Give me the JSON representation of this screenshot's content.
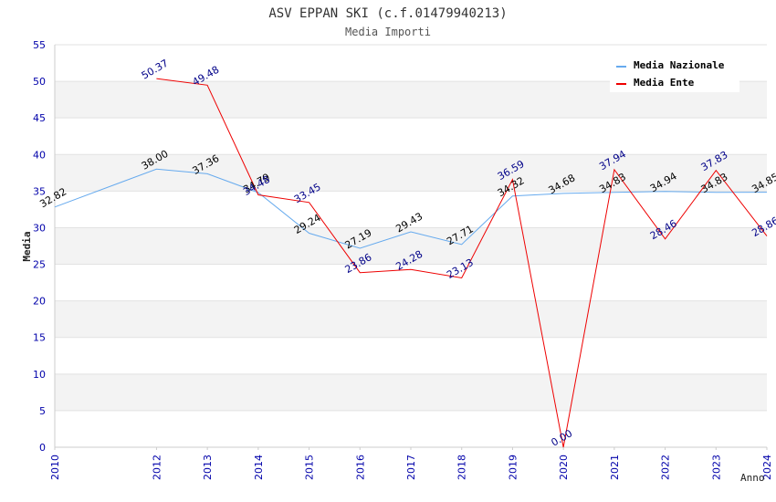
{
  "chart_data": {
    "type": "line",
    "title": "ASV EPPAN SKI (c.f.01479940213)",
    "subtitle": "Media Importi",
    "xlabel": "Anno",
    "ylabel": "Media",
    "ylim": [
      0,
      55
    ],
    "yticks": [
      "0",
      "5",
      "10",
      "15",
      "20",
      "25",
      "30",
      "35",
      "40",
      "45",
      "50",
      "55"
    ],
    "x": [
      "2010",
      "2011",
      "2012",
      "2013",
      "2014",
      "2015",
      "2016",
      "2017",
      "2018",
      "2019",
      "2020",
      "2021",
      "2022",
      "2023",
      "2024"
    ],
    "xticks": [
      "2010",
      "2012",
      "2013",
      "2014",
      "2015",
      "2016",
      "2017",
      "2018",
      "2019",
      "2020",
      "2021",
      "2022",
      "2023",
      "2024"
    ],
    "series": [
      {
        "name": "Media Nazionale",
        "color": "#66aaee",
        "label_color": "#000000",
        "values": [
          32.82,
          null,
          38.0,
          37.36,
          34.79,
          29.24,
          27.19,
          29.43,
          27.71,
          34.32,
          34.68,
          34.83,
          34.94,
          34.83,
          34.85
        ],
        "labels": [
          "32.82",
          null,
          "38.00",
          "37.36",
          "34.79",
          "29.24",
          "27.19",
          "29.43",
          "27.71",
          "34.32",
          "34.68",
          "34.83",
          "34.94",
          "34.83",
          "34.85"
        ]
      },
      {
        "name": "Media Ente",
        "color": "#ee0000",
        "label_color": "#000088",
        "values": [
          null,
          null,
          50.37,
          49.48,
          34.48,
          33.45,
          23.86,
          24.28,
          23.13,
          36.59,
          0.0,
          37.94,
          28.46,
          37.83,
          28.86
        ],
        "labels": [
          null,
          null,
          "50.37",
          "49.48",
          "34.48",
          "33.45",
          "23.86",
          "24.28",
          "23.13",
          "36.59",
          "0.00",
          "37.94",
          "28.46",
          "37.83",
          "28.86"
        ]
      }
    ],
    "legend": {
      "position": "top-right"
    },
    "grid": true
  }
}
